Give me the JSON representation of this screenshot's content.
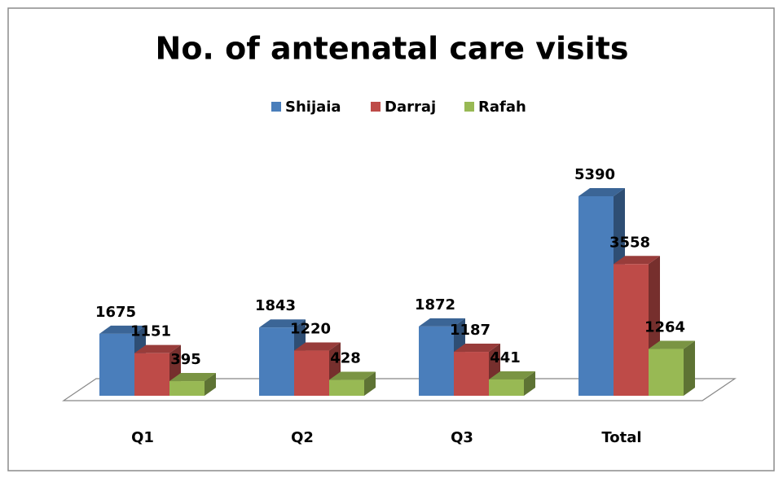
{
  "chart_data": {
    "type": "bar3d",
    "title": "No. of antenatal care visits",
    "categories": [
      "Q1",
      "Q2",
      "Q3",
      "Total"
    ],
    "series": [
      {
        "name": "Shijaia",
        "color": "#4a7ebb",
        "values": [
          1675,
          1843,
          1872,
          5390
        ]
      },
      {
        "name": "Darraj",
        "color": "#be4b48",
        "values": [
          1151,
          1220,
          1187,
          3558
        ]
      },
      {
        "name": "Rafah",
        "color": "#98b954",
        "values": [
          395,
          428,
          441,
          1264
        ]
      }
    ],
    "legend": "top"
  }
}
